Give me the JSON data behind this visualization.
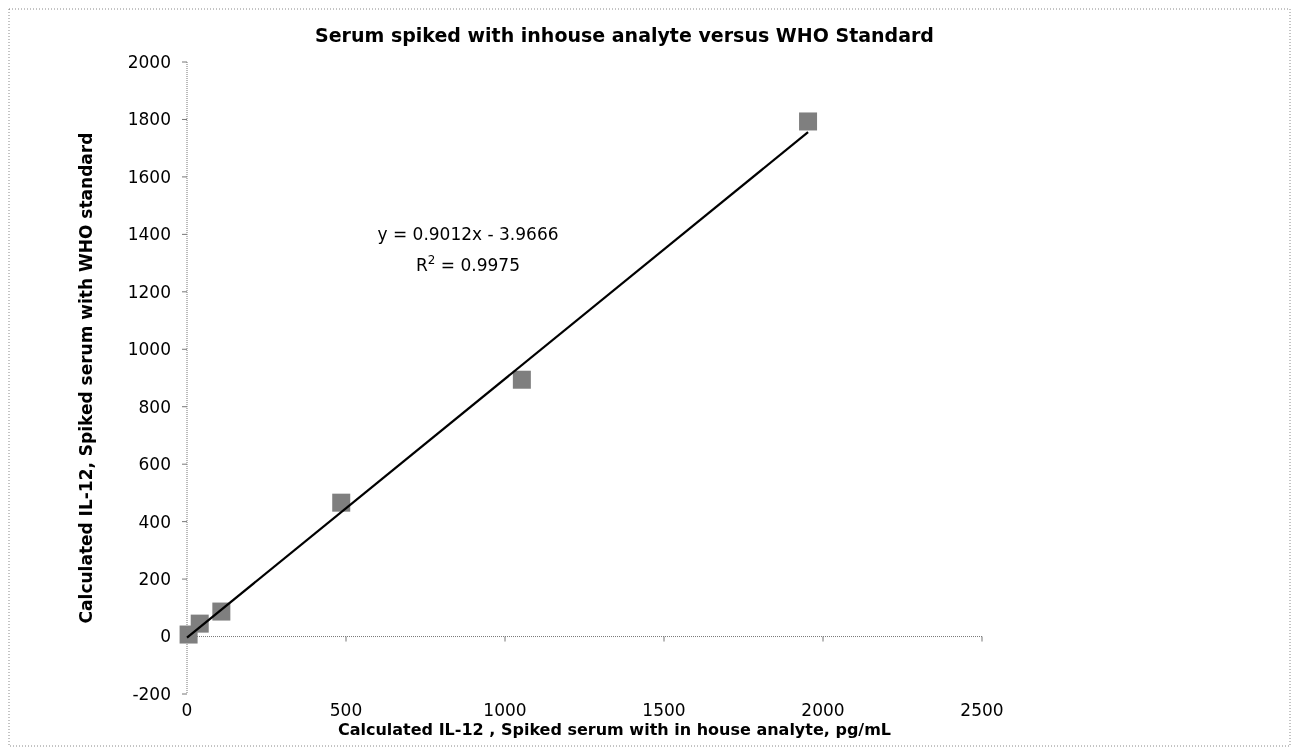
{
  "chart_data": {
    "type": "scatter",
    "title": "Serum spiked with inhouse analyte versus WHO Standard",
    "xlabel": "Calculated IL-12 , Spiked serum with in house analyte, pg/mL",
    "ylabel": "Calculated IL-12, Spiked serum with WHO standard",
    "x": [
      5,
      40,
      108,
      485,
      1053,
      1953
    ],
    "series": [
      {
        "color": "#7f7f7f",
        "marker": "square",
        "values": [
          7,
          45,
          87,
          466,
          894,
          1793
        ]
      },
      {
        "type": "line",
        "color": "#000000",
        "line_style": "solid",
        "x": [
          0,
          1953
        ],
        "values": [
          -4,
          1756
        ]
      }
    ],
    "annotations": [
      "y = 0.9012x - 3.9666",
      "R$^{2}$ = 0.9975"
    ],
    "xlim": [
      0,
      2500
    ],
    "xticks": [
      0,
      500,
      1000,
      1500,
      2000,
      2500
    ],
    "ylim": [
      -200,
      2000
    ],
    "yticks": [
      -200,
      0,
      200,
      400,
      600,
      800,
      1000,
      1200,
      1400,
      1600,
      1800,
      2000
    ]
  }
}
